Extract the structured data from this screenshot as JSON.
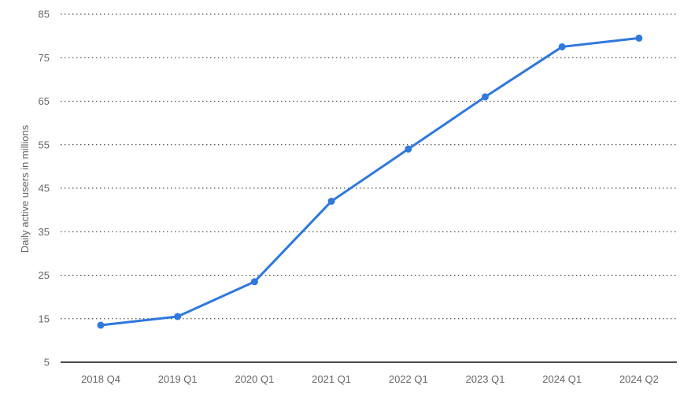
{
  "colors": {
    "series": "#2f78dd",
    "grid": "#2a2a2a",
    "axis": "#111111",
    "text": "#666666"
  },
  "chart_data": {
    "type": "line",
    "title": "",
    "xlabel": "",
    "ylabel": "Daily active users in millions",
    "categories": [
      "2018 Q4",
      "2019 Q1",
      "2020 Q1",
      "2021 Q1",
      "2022 Q1",
      "2023 Q1",
      "2024 Q1",
      "2024 Q2"
    ],
    "series": [
      {
        "values": [
          13.5,
          15.5,
          23.5,
          42,
          54,
          66,
          77.5,
          79.5
        ]
      }
    ],
    "ylim": [
      5,
      85
    ],
    "yticks": [
      5,
      15,
      25,
      35,
      45,
      55,
      65,
      75,
      85
    ],
    "grid": true,
    "legend": "none"
  }
}
